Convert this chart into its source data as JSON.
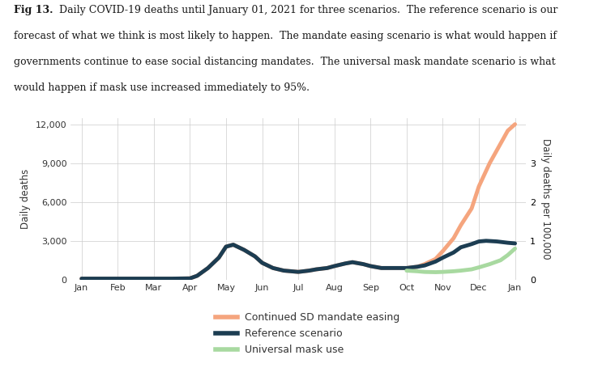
{
  "caption_bold": "Fig 13.",
  "caption_rest": "  Daily COVID-19 deaths until January 01, 2021 for three scenarios.  The reference scenario is our forecast of what we think is most likely to happen.  The mandate easing scenario is what would happen if governments continue to ease social distancing mandates.  The universal mask mandate scenario is what would happen if mask use increased immediately to 95%.",
  "ylabel_left": "Daily deaths",
  "ylabel_right": "Daily deaths per 100,000",
  "yticks_left": [
    0,
    3000,
    6000,
    9000,
    12000
  ],
  "ytick_labels_left": [
    "0",
    "3,000",
    "6,000",
    "9,000",
    "12,000"
  ],
  "ylim": [
    0,
    12500
  ],
  "background_color": "#ffffff",
  "grid_color": "#cccccc",
  "legend_entries": [
    "Continued SD mandate easing",
    "Reference scenario",
    "Universal mask use"
  ],
  "legend_colors": [
    "#f5a57e",
    "#1c3d52",
    "#a8d9a0"
  ],
  "months": [
    "Jan",
    "Feb",
    "Mar",
    "Apr",
    "May",
    "Jun",
    "Jul",
    "Aug",
    "Sep",
    "Oct",
    "Nov",
    "Dec",
    "Jan"
  ],
  "ref_x": [
    0,
    0.5,
    1,
    1.5,
    2,
    2.5,
    3,
    3.2,
    3.5,
    3.8,
    4,
    4.2,
    4.5,
    4.8,
    5,
    5.3,
    5.6,
    6,
    6.3,
    6.5,
    6.8,
    7,
    7.3,
    7.5,
    7.8,
    8,
    8.3,
    8.5,
    8.8,
    9,
    9.3,
    9.5,
    9.8,
    10,
    10.3,
    10.5,
    10.8,
    11,
    11.2,
    11.5,
    11.8,
    12
  ],
  "ref_y": [
    80,
    80,
    80,
    80,
    80,
    80,
    100,
    300,
    900,
    1700,
    2550,
    2700,
    2300,
    1800,
    1300,
    900,
    700,
    600,
    700,
    800,
    900,
    1050,
    1250,
    1350,
    1200,
    1050,
    900,
    900,
    900,
    900,
    1000,
    1100,
    1400,
    1700,
    2100,
    2500,
    2750,
    2950,
    3000,
    2950,
    2850,
    2800
  ],
  "ref_color": "#1c3d52",
  "ref_lw": 3.5,
  "ease_x": [
    0,
    0.5,
    1,
    1.5,
    2,
    2.5,
    3,
    3.2,
    3.5,
    3.8,
    4,
    4.2,
    4.5,
    4.8,
    5,
    5.3,
    5.6,
    6,
    6.3,
    6.5,
    6.8,
    7,
    7.3,
    7.5,
    7.8,
    8,
    8.3,
    8.5,
    8.8,
    9,
    9.3,
    9.5,
    9.8,
    10,
    10.3,
    10.5,
    10.8,
    11,
    11.3,
    11.6,
    11.8,
    12
  ],
  "ease_y": [
    80,
    80,
    80,
    80,
    80,
    80,
    100,
    300,
    900,
    1700,
    2550,
    2700,
    2300,
    1800,
    1300,
    900,
    700,
    600,
    700,
    800,
    900,
    1050,
    1250,
    1350,
    1200,
    1050,
    900,
    900,
    900,
    900,
    1000,
    1200,
    1600,
    2200,
    3200,
    4200,
    5500,
    7200,
    9000,
    10500,
    11500,
    12000
  ],
  "ease_color": "#f5a57e",
  "ease_lw": 3.5,
  "mask_x": [
    9.0,
    9.3,
    9.5,
    9.8,
    10.0,
    10.3,
    10.5,
    10.8,
    11.0,
    11.3,
    11.6,
    11.8,
    12.0
  ],
  "mask_y": [
    700,
    650,
    600,
    580,
    600,
    650,
    700,
    800,
    950,
    1200,
    1500,
    1900,
    2400
  ],
  "mask_color": "#a8d9a0",
  "mask_lw": 3.5,
  "title_fontsize": 9.0,
  "axis_fontsize": 8.5,
  "tick_fontsize": 8.0,
  "legend_fontsize": 9.0
}
